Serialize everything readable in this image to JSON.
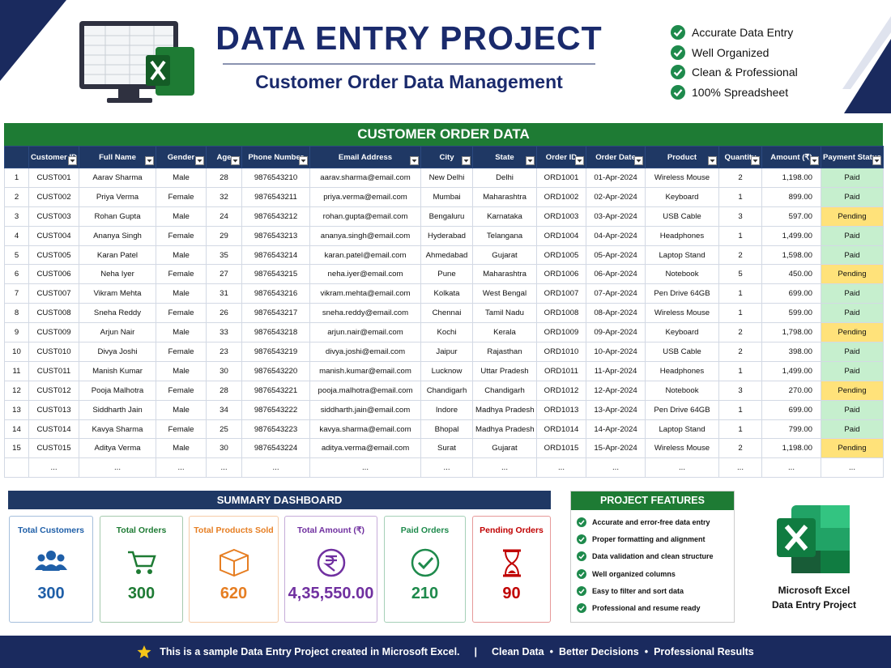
{
  "header": {
    "title": "DATA ENTRY PROJECT",
    "subtitle": "Customer Order Data Management",
    "features": [
      "Accurate Data Entry",
      "Well Organized",
      "Clean & Professional",
      "100% Spreadsheet"
    ]
  },
  "table": {
    "title": "CUSTOMER ORDER DATA",
    "columns": [
      "Customer ID",
      "Full Name",
      "Gender",
      "Age",
      "Phone Number",
      "Email Address",
      "City",
      "State",
      "Order ID",
      "Order Date",
      "Product",
      "Quantity",
      "Amount (₹)",
      "Payment Status"
    ],
    "status_colors": {
      "Paid": "#c6efce",
      "Pending": "#ffe27a"
    },
    "rows": [
      [
        "1",
        "CUST001",
        "Aarav Sharma",
        "Male",
        "28",
        "9876543210",
        "aarav.sharma@email.com",
        "New Delhi",
        "Delhi",
        "ORD1001",
        "01-Apr-2024",
        "Wireless Mouse",
        "2",
        "1,198.00",
        "Paid"
      ],
      [
        "2",
        "CUST002",
        "Priya Verma",
        "Female",
        "32",
        "9876543211",
        "priya.verma@email.com",
        "Mumbai",
        "Maharashtra",
        "ORD1002",
        "02-Apr-2024",
        "Keyboard",
        "1",
        "899.00",
        "Paid"
      ],
      [
        "3",
        "CUST003",
        "Rohan Gupta",
        "Male",
        "24",
        "9876543212",
        "rohan.gupta@email.com",
        "Bengaluru",
        "Karnataka",
        "ORD1003",
        "03-Apr-2024",
        "USB Cable",
        "3",
        "597.00",
        "Pending"
      ],
      [
        "4",
        "CUST004",
        "Ananya Singh",
        "Female",
        "29",
        "9876543213",
        "ananya.singh@email.com",
        "Hyderabad",
        "Telangana",
        "ORD1004",
        "04-Apr-2024",
        "Headphones",
        "1",
        "1,499.00",
        "Paid"
      ],
      [
        "5",
        "CUST005",
        "Karan Patel",
        "Male",
        "35",
        "9876543214",
        "karan.patel@email.com",
        "Ahmedabad",
        "Gujarat",
        "ORD1005",
        "05-Apr-2024",
        "Laptop Stand",
        "2",
        "1,598.00",
        "Paid"
      ],
      [
        "6",
        "CUST006",
        "Neha Iyer",
        "Female",
        "27",
        "9876543215",
        "neha.iyer@email.com",
        "Pune",
        "Maharashtra",
        "ORD1006",
        "06-Apr-2024",
        "Notebook",
        "5",
        "450.00",
        "Pending"
      ],
      [
        "7",
        "CUST007",
        "Vikram Mehta",
        "Male",
        "31",
        "9876543216",
        "vikram.mehta@email.com",
        "Kolkata",
        "West Bengal",
        "ORD1007",
        "07-Apr-2024",
        "Pen Drive 64GB",
        "1",
        "699.00",
        "Paid"
      ],
      [
        "8",
        "CUST008",
        "Sneha Reddy",
        "Female",
        "26",
        "9876543217",
        "sneha.reddy@email.com",
        "Chennai",
        "Tamil Nadu",
        "ORD1008",
        "08-Apr-2024",
        "Wireless Mouse",
        "1",
        "599.00",
        "Paid"
      ],
      [
        "9",
        "CUST009",
        "Arjun Nair",
        "Male",
        "33",
        "9876543218",
        "arjun.nair@email.com",
        "Kochi",
        "Kerala",
        "ORD1009",
        "09-Apr-2024",
        "Keyboard",
        "2",
        "1,798.00",
        "Pending"
      ],
      [
        "10",
        "CUST010",
        "Divya Joshi",
        "Female",
        "23",
        "9876543219",
        "divya.joshi@email.com",
        "Jaipur",
        "Rajasthan",
        "ORD1010",
        "10-Apr-2024",
        "USB Cable",
        "2",
        "398.00",
        "Paid"
      ],
      [
        "11",
        "CUST011",
        "Manish Kumar",
        "Male",
        "30",
        "9876543220",
        "manish.kumar@email.com",
        "Lucknow",
        "Uttar Pradesh",
        "ORD1011",
        "11-Apr-2024",
        "Headphones",
        "1",
        "1,499.00",
        "Paid"
      ],
      [
        "12",
        "CUST012",
        "Pooja Malhotra",
        "Female",
        "28",
        "9876543221",
        "pooja.malhotra@email.com",
        "Chandigarh",
        "Chandigarh",
        "ORD1012",
        "12-Apr-2024",
        "Notebook",
        "3",
        "270.00",
        "Pending"
      ],
      [
        "13",
        "CUST013",
        "Siddharth Jain",
        "Male",
        "34",
        "9876543222",
        "siddharth.jain@email.com",
        "Indore",
        "Madhya Pradesh",
        "ORD1013",
        "13-Apr-2024",
        "Pen Drive 64GB",
        "1",
        "699.00",
        "Paid"
      ],
      [
        "14",
        "CUST014",
        "Kavya Sharma",
        "Female",
        "25",
        "9876543223",
        "kavya.sharma@email.com",
        "Bhopal",
        "Madhya Pradesh",
        "ORD1014",
        "14-Apr-2024",
        "Laptop Stand",
        "1",
        "799.00",
        "Paid"
      ],
      [
        "15",
        "CUST015",
        "Aditya Verma",
        "Male",
        "30",
        "9876543224",
        "aditya.verma@email.com",
        "Surat",
        "Gujarat",
        "ORD1015",
        "15-Apr-2024",
        "Wireless Mouse",
        "2",
        "1,198.00",
        "Pending"
      ]
    ],
    "ellipsis": "..."
  },
  "dashboard": {
    "title": "SUMMARY DASHBOARD",
    "cards": [
      {
        "label": "Total Customers",
        "value": "300",
        "color": "#1f5fa8"
      },
      {
        "label": "Total Orders",
        "value": "300",
        "color": "#1e7b34"
      },
      {
        "label": "Total Products Sold",
        "value": "620",
        "color": "#e67e22"
      },
      {
        "label": "Total Amount (₹)",
        "value": "4,35,550.00",
        "color": "#7030a0"
      },
      {
        "label": "Paid Orders",
        "value": "210",
        "color": "#1e8a4c"
      },
      {
        "label": "Pending Orders",
        "value": "90",
        "color": "#c00000"
      }
    ]
  },
  "project_features": {
    "title": "PROJECT FEATURES",
    "items": [
      "Accurate and error-free data entry",
      "Proper formatting and alignment",
      "Data validation and clean structure",
      "Well organized columns",
      "Easy to filter and sort data",
      "Professional and resume ready"
    ]
  },
  "excel_label": [
    "Microsoft Excel",
    "Data Entry Project"
  ],
  "footer": {
    "note": "This is a sample Data Entry Project created in Microsoft Excel.",
    "tags": [
      "Clean Data",
      "Better Decisions",
      "Professional Results"
    ]
  }
}
